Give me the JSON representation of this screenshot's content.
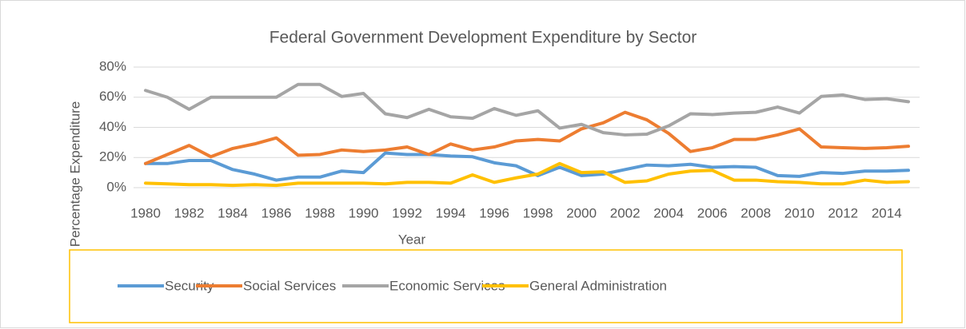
{
  "chart_data": {
    "type": "line",
    "title": "Federal Government Development Expenditure by Sector",
    "x_label": "Year",
    "y_label": "Percentage Expenditure",
    "x": [
      1980,
      1981,
      1982,
      1983,
      1984,
      1985,
      1986,
      1987,
      1988,
      1989,
      1990,
      1991,
      1992,
      1993,
      1994,
      1995,
      1996,
      1997,
      1998,
      1999,
      2000,
      2001,
      2002,
      2003,
      2004,
      2005,
      2006,
      2007,
      2008,
      2009,
      2010,
      2011,
      2012,
      2013,
      2014,
      2015
    ],
    "xlim": [
      1980,
      2015
    ],
    "xticks": [
      1980,
      1982,
      1984,
      1986,
      1988,
      1990,
      1992,
      1994,
      1996,
      1998,
      2000,
      2002,
      2004,
      2006,
      2008,
      2010,
      2012,
      2014
    ],
    "ylim": [
      0,
      80
    ],
    "yticks": [
      {
        "value": 0,
        "label": "0%"
      },
      {
        "value": 20,
        "label": "20%"
      },
      {
        "value": 40,
        "label": "40%"
      },
      {
        "value": 60,
        "label": "60%"
      },
      {
        "value": 80,
        "label": "80%"
      }
    ],
    "grid": true,
    "legend": "bottom",
    "series": [
      {
        "name": "Security",
        "color": "#5b9bd5",
        "values": [
          16,
          16,
          18,
          18,
          12,
          9,
          5,
          7,
          7,
          11,
          10,
          23,
          22,
          22,
          21,
          20.5,
          16.5,
          14.5,
          8,
          13.5,
          8,
          9,
          12,
          15,
          14.5,
          15.5,
          13.5,
          14,
          13.5,
          8,
          7.5,
          10,
          9.5,
          11,
          11,
          11.5
        ]
      },
      {
        "name": "Social Services",
        "color": "#ed7d31",
        "values": [
          16,
          22,
          28,
          20.5,
          26,
          29,
          33,
          21.5,
          22,
          25,
          24,
          25,
          27,
          22,
          29,
          25,
          27,
          31,
          32,
          31,
          39,
          43,
          50,
          45,
          36,
          24,
          26.5,
          32,
          32,
          35,
          39,
          27,
          26.5,
          26,
          26.5,
          27.5
        ]
      },
      {
        "name": "Economic Services",
        "color": "#a5a5a5",
        "values": [
          64.5,
          60,
          52,
          60,
          60,
          60,
          60,
          68.5,
          68.5,
          60.5,
          62.5,
          49,
          46.5,
          52,
          47,
          46,
          52.5,
          48,
          51,
          39.5,
          42,
          36.5,
          35,
          35.5,
          41,
          49,
          48.5,
          49.5,
          50,
          53.5,
          49.5,
          60.5,
          61.5,
          58.5,
          59,
          57
        ]
      },
      {
        "name": "General Administration",
        "color": "#ffc000",
        "values": [
          3,
          2.5,
          2,
          2,
          1.5,
          2,
          1.5,
          3,
          3,
          3,
          3,
          2.5,
          3.5,
          3.5,
          3,
          8.5,
          3.5,
          6.5,
          9,
          16,
          10,
          10.5,
          3.5,
          4.5,
          9,
          11,
          11.5,
          5,
          5,
          4,
          3.5,
          2.5,
          2.5,
          5,
          3.5,
          4
        ]
      }
    ]
  }
}
